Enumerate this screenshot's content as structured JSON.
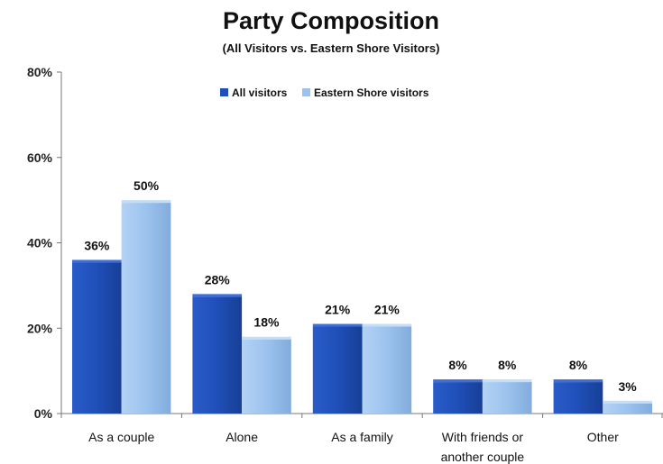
{
  "chart_data": {
    "type": "bar",
    "title": "Party Composition",
    "subtitle": "(All Visitors vs. Eastern Shore Visitors)",
    "xlabel": "",
    "ylabel": "",
    "ylim": [
      0,
      80
    ],
    "yticks": [
      "0%",
      "20%",
      "40%",
      "60%",
      "80%"
    ],
    "categories": [
      [
        "As a couple"
      ],
      [
        "Alone"
      ],
      [
        "As a family"
      ],
      [
        "With friends or",
        "another couple"
      ],
      [
        "Other"
      ]
    ],
    "series": [
      {
        "name": "All visitors",
        "color": "#1f4fb8",
        "values": [
          36,
          28,
          21,
          8,
          8
        ],
        "labels": [
          "36%",
          "28%",
          "21%",
          "8%",
          "8%"
        ]
      },
      {
        "name": "Eastern Shore visitors",
        "color": "#9cc3ee",
        "values": [
          50,
          18,
          21,
          8,
          3
        ],
        "labels": [
          "50%",
          "18%",
          "21%",
          "8%",
          "3%"
        ]
      }
    ],
    "legend_position": "top-center",
    "grid": false
  }
}
